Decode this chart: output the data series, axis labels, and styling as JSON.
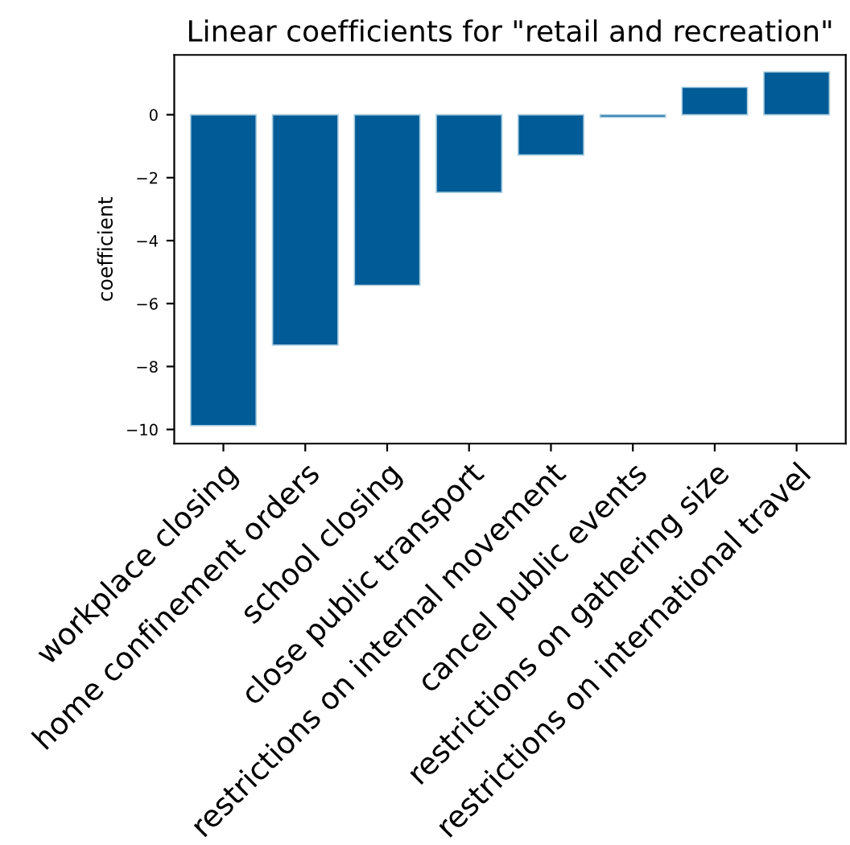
{
  "chart_data": {
    "type": "bar",
    "title": "Linear coefficients for \"retail and recreation\"",
    "ylabel": "coefficient",
    "categories": [
      "workplace closing",
      "home confinement orders",
      "school closing",
      "close public transport",
      "restrictions on internal movement",
      "cancel public events",
      "restrictions on gathering size",
      "restrictions on international travel"
    ],
    "values": [
      -9.88,
      -7.32,
      -5.42,
      -2.47,
      -1.28,
      -0.08,
      0.87,
      1.36
    ],
    "color": "#005b96",
    "ylim": [
      -10.45,
      1.9
    ],
    "yticks": [
      -10,
      -8,
      -6,
      -4,
      -2,
      0
    ],
    "grid": false
  }
}
